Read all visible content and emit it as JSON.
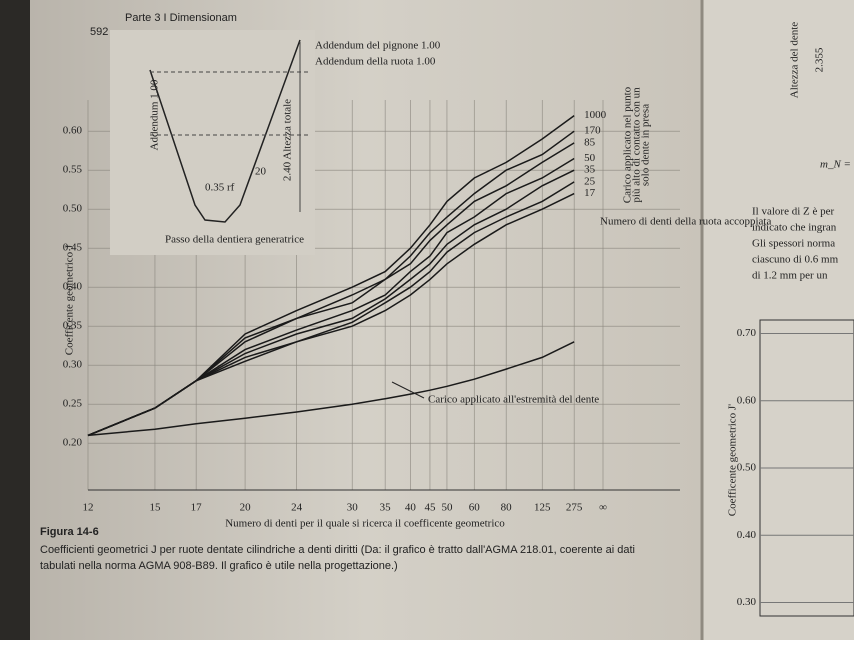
{
  "page": {
    "page_number": "592",
    "running_head": "Parte 3 I Dimensionam",
    "figure_label": "Figura 14-6",
    "caption_lines": [
      "Coefficienti geometrici J per ruote dentate cilindriche a denti diritti (Da: il grafico è tratto dall'AGMA 218.01, coerente ai dati",
      "tabulati nella norma AGMA 908-B89. Il grafico è utile nella progettazione.)"
    ]
  },
  "right_page": {
    "label_height": "Altezza del dente",
    "fraction": "2.355",
    "formula": "m_N =",
    "text_lines": [
      "Il valore di Z è per",
      "indicato che ingran",
      "Gli spessori norma",
      "ciascuno di 0.6 mm",
      "di 1.2 mm per un"
    ]
  },
  "chart_data": [
    {
      "type": "line",
      "xlabel": "Numero di denti per il quale si ricerca il coefficente geometrico",
      "ylabel": "Coefficente geometrico J",
      "categories": [
        "12",
        "15",
        "17",
        "20",
        "24",
        "30",
        "35",
        "40",
        "45",
        "50",
        "60",
        "80",
        "125",
        "275",
        "∞"
      ],
      "ylim": [
        0.14,
        0.64
      ],
      "yticks": [
        {
          "value": 0.2,
          "label": "0.20"
        },
        {
          "value": 0.25,
          "label": "0.25"
        },
        {
          "value": 0.3,
          "label": "0.30"
        },
        {
          "value": 0.35,
          "label": "0.35"
        },
        {
          "value": 0.4,
          "label": "0.40"
        },
        {
          "value": 0.45,
          "label": "0.45"
        },
        {
          "value": 0.5,
          "label": "0.50"
        },
        {
          "value": 0.55,
          "label": "0.55"
        },
        {
          "value": 0.6,
          "label": "0.60"
        }
      ],
      "grid": true,
      "legend_title": "Numero di denti della ruota accoppiata",
      "load_note": [
        "Carico applicato nel punto",
        "più alto di contatto con un",
        "solo dente in presa"
      ],
      "annotations": {
        "addendum_pinion": "Addendum del pignone 1.00",
        "addendum_gear": "Addendum della ruota 1.00",
        "addendum": "Addendum 1.00",
        "total_height": "2.40 Altezza totale",
        "angle": "20",
        "radius": "0.35 rf",
        "rack": "Passo della dentiera generatrice"
      },
      "series": [
        {
          "name": "1000",
          "color": "#1a1a1a",
          "values": [
            0.21,
            0.245,
            0.28,
            0.34,
            0.37,
            0.4,
            0.42,
            0.45,
            0.48,
            0.51,
            0.54,
            0.56,
            0.59,
            0.62,
            null
          ]
        },
        {
          "name": "170",
          "color": "#1a1a1a",
          "values": [
            0.21,
            0.245,
            0.28,
            0.335,
            0.36,
            0.39,
            0.41,
            0.44,
            0.47,
            0.49,
            0.52,
            0.55,
            0.57,
            0.6,
            null
          ]
        },
        {
          "name": "85",
          "color": "#1a1a1a",
          "values": [
            0.21,
            0.245,
            0.28,
            0.33,
            0.36,
            0.38,
            0.41,
            0.43,
            0.46,
            0.48,
            0.51,
            0.53,
            0.56,
            0.585,
            null
          ]
        },
        {
          "name": "50",
          "color": "#1a1a1a",
          "values": [
            0.21,
            0.245,
            0.28,
            0.32,
            0.345,
            0.37,
            0.39,
            0.42,
            0.44,
            0.47,
            0.49,
            0.52,
            0.54,
            0.565,
            null
          ]
        },
        {
          "name": "35",
          "color": "#1a1a1a",
          "values": [
            0.21,
            0.245,
            0.28,
            0.315,
            0.34,
            0.36,
            0.385,
            0.41,
            0.43,
            0.455,
            0.48,
            0.5,
            0.53,
            0.55,
            null
          ]
        },
        {
          "name": "25",
          "color": "#1a1a1a",
          "values": [
            0.21,
            0.245,
            0.28,
            0.31,
            0.33,
            0.355,
            0.38,
            0.4,
            0.42,
            0.445,
            0.47,
            0.49,
            0.51,
            0.535,
            null
          ]
        },
        {
          "name": "17",
          "color": "#1a1a1a",
          "values": [
            0.21,
            0.245,
            0.28,
            0.305,
            0.33,
            0.35,
            0.37,
            0.39,
            0.41,
            0.43,
            0.455,
            0.48,
            0.5,
            0.52,
            null
          ]
        },
        {
          "name": "Carico applicato all'estremità del dente",
          "color": "#1a1a1a",
          "values": [
            0.21,
            0.218,
            0.225,
            0.232,
            0.24,
            0.25,
            0.257,
            0.263,
            0.268,
            0.273,
            0.282,
            0.295,
            0.31,
            0.33,
            null
          ]
        }
      ]
    },
    {
      "type": "line",
      "ylabel": "Coefficente geometrico J'",
      "ylim": [
        0.28,
        0.72
      ],
      "yticks": [
        {
          "value": 0.3,
          "label": "0.30"
        },
        {
          "value": 0.4,
          "label": "0.40"
        },
        {
          "value": 0.5,
          "label": "0.50"
        },
        {
          "value": 0.6,
          "label": "0.60"
        },
        {
          "value": 0.7,
          "label": "0.70"
        }
      ],
      "grid": true
    }
  ]
}
